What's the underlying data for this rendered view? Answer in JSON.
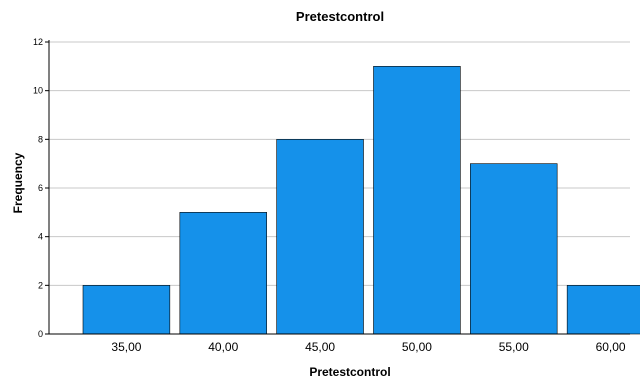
{
  "chart_data": {
    "type": "bar",
    "title": "Pretestcontrol",
    "xlabel": "Pretestcontrol",
    "ylabel": "Frequency",
    "categories": [
      "35,00",
      "40,00",
      "45,00",
      "50,00",
      "55,00",
      "60,00"
    ],
    "values": [
      2,
      5,
      8,
      11,
      7,
      2
    ],
    "ylim": [
      0,
      12
    ],
    "yticks": [
      "0",
      "2",
      "4",
      "6",
      "8",
      "10",
      "12"
    ],
    "grid": true,
    "bar_color": "#1591EA",
    "legend": "none"
  }
}
